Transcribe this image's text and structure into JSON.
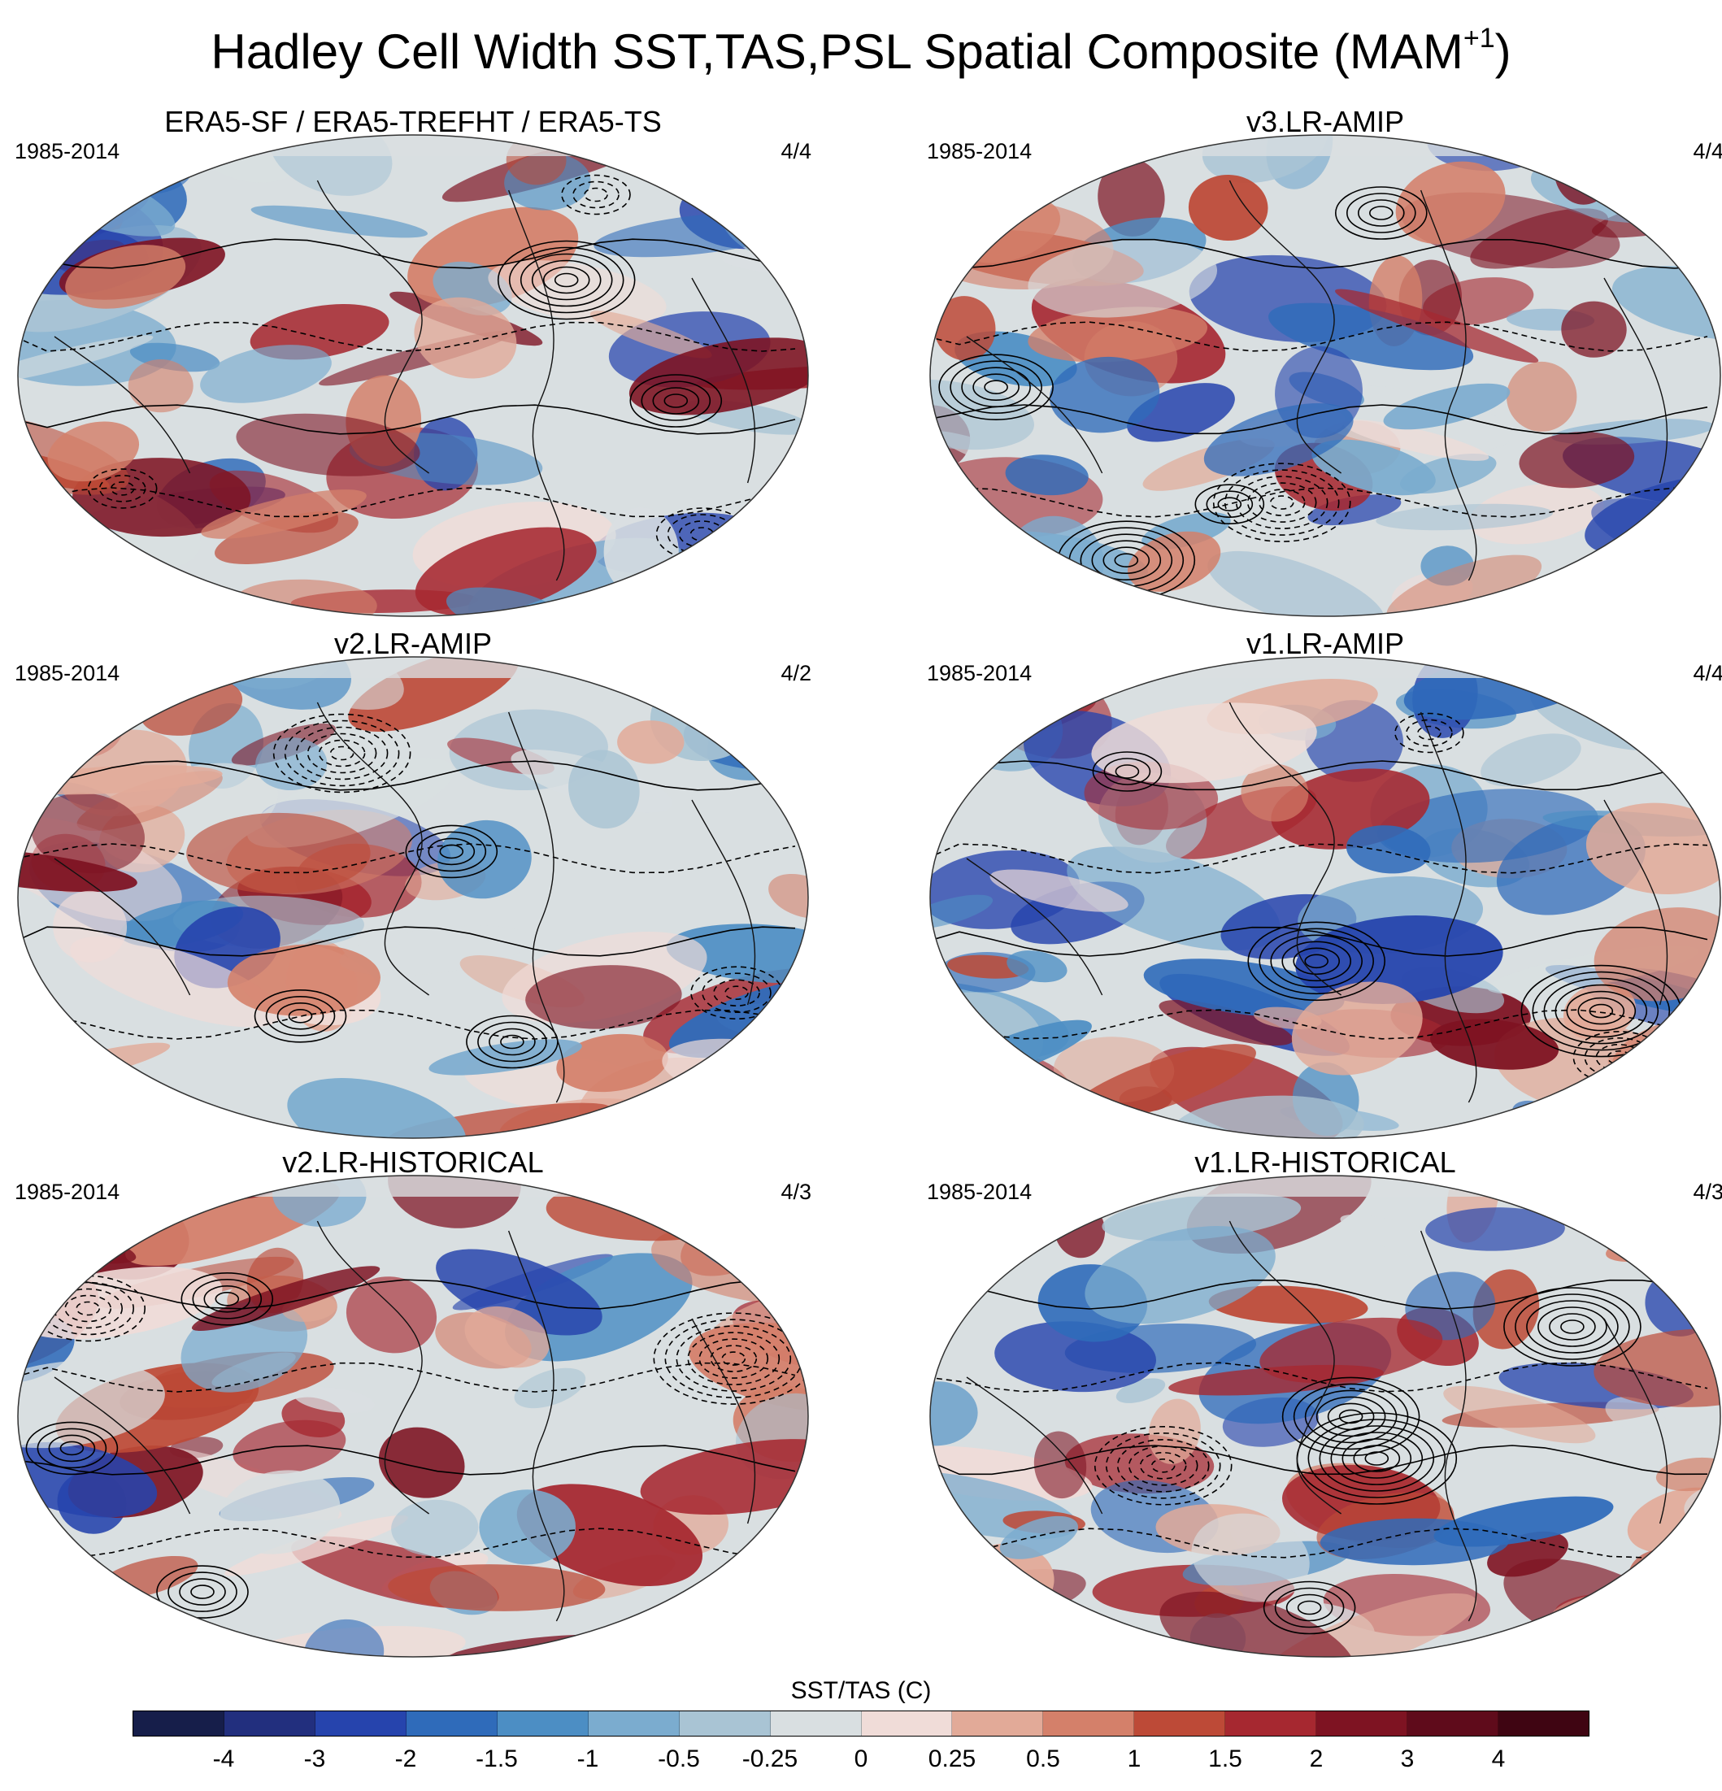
{
  "figure": {
    "title": "Hadley Cell Width SST,TAS,PSL Spatial Composite (MAM",
    "title_sup": "+1",
    "title_close": ")"
  },
  "panels": [
    {
      "title": "ERA5-SF / ERA5-TREFHT / ERA5-TS",
      "years": "1985-2014",
      "count": "4/4"
    },
    {
      "title": "v3.LR-AMIP",
      "years": "1985-2014",
      "count": "4/4"
    },
    {
      "title": "v2.LR-AMIP",
      "years": "1985-2014",
      "count": "4/2"
    },
    {
      "title": "v1.LR-AMIP",
      "years": "1985-2014",
      "count": "4/4"
    },
    {
      "title": "v2.LR-HISTORICAL",
      "years": "1985-2014",
      "count": "4/3"
    },
    {
      "title": "v1.LR-HISTORICAL",
      "years": "1985-2014",
      "count": "4/3"
    }
  ],
  "colorbar": {
    "label": "SST/TAS (C)",
    "ticks": [
      "-4",
      "-3",
      "-2",
      "-1.5",
      "-1",
      "-0.5",
      "-0.25",
      "0",
      "0.25",
      "0.5",
      "1",
      "1.5",
      "2",
      "3",
      "4"
    ],
    "colors": [
      "#161e4a",
      "#222f7e",
      "#2644ad",
      "#2f6bba",
      "#4c8ec4",
      "#7baccf",
      "#a9c4d4",
      "#d9dfe1",
      "#f0dcd8",
      "#e2aa98",
      "#d4806a",
      "#bd4a37",
      "#a62830",
      "#7e1322",
      "#5f0b1b",
      "#3f0512"
    ]
  },
  "chart_data": {
    "type": "heatmap",
    "title": "Hadley Cell Width SST,TAS,PSL Spatial Composite (MAM+1)",
    "variable": "SST/TAS (C)",
    "contour_levels": [
      -4,
      -3,
      -2,
      -1.5,
      -1,
      -0.5,
      -0.25,
      0,
      0.25,
      0.5,
      1,
      1.5,
      2,
      3,
      4
    ],
    "panels": [
      "ERA5-SF / ERA5-TREFHT / ERA5-TS",
      "v3.LR-AMIP",
      "v2.LR-AMIP",
      "v1.LR-AMIP",
      "v2.LR-HISTORICAL",
      "v1.LR-HISTORICAL"
    ],
    "period": "1985-2014"
  }
}
